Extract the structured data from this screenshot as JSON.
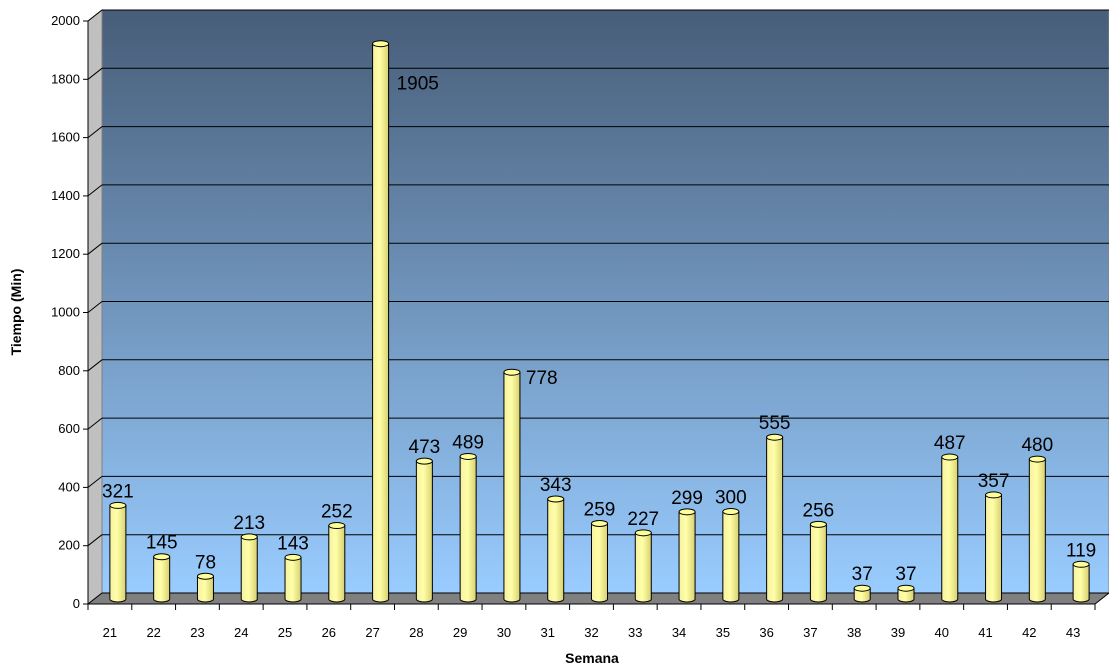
{
  "chart_data": {
    "type": "bar",
    "title": "",
    "xlabel": "Semana",
    "ylabel": "Tiempo (Min)",
    "ylim": [
      0,
      2000
    ],
    "yticks": [
      0,
      200,
      400,
      600,
      800,
      1000,
      1200,
      1400,
      1600,
      1800,
      2000
    ],
    "grid": true,
    "categories": [
      "21",
      "22",
      "23",
      "24",
      "25",
      "26",
      "27",
      "28",
      "29",
      "30",
      "31",
      "32",
      "33",
      "34",
      "35",
      "36",
      "37",
      "38",
      "39",
      "40",
      "41",
      "42",
      "43"
    ],
    "values": [
      321,
      145,
      78,
      213,
      143,
      252,
      1905,
      473,
      489,
      778,
      343,
      259,
      227,
      299,
      300,
      555,
      256,
      37,
      37,
      487,
      357,
      480,
      119
    ],
    "data_labels": [
      "321",
      "145",
      "78",
      "213",
      "143",
      "252",
      "1905",
      "473",
      "489",
      "778",
      "343",
      "259",
      "227",
      "299",
      "300",
      "555",
      "256",
      "37",
      "37",
      "487",
      "357",
      "480",
      "119"
    ],
    "colors": {
      "bar_fill": "#ffff99",
      "bar_stroke": "#000000",
      "plot_bg_top": "#475d78",
      "plot_bg_bottom": "#99ccff",
      "floor": "#808080",
      "wall_side": "#c0c0c0"
    }
  }
}
